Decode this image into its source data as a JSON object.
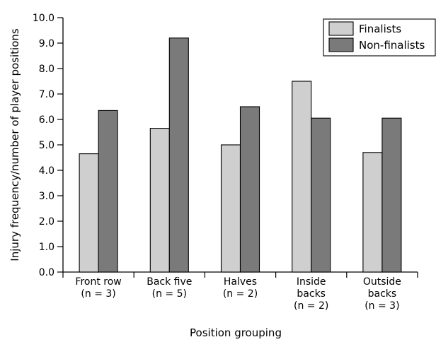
{
  "chart_data": {
    "type": "bar",
    "categories": [
      [
        "Front row",
        "(n = 3)"
      ],
      [
        "Back five",
        "(n = 5)"
      ],
      [
        "Halves",
        "(n = 2)"
      ],
      [
        "Inside",
        "backs",
        "(n = 2)"
      ],
      [
        "Outside",
        "backs",
        "(n = 3)"
      ]
    ],
    "series": [
      {
        "name": "Finalists",
        "color": "#cfcfcf",
        "values": [
          4.65,
          5.65,
          5.0,
          7.5,
          4.7
        ]
      },
      {
        "name": "Non-finalists",
        "color": "#7a7a7a",
        "values": [
          6.35,
          9.2,
          6.5,
          6.05,
          6.05
        ]
      }
    ],
    "ylabel": "Injury frequency/number of player positions",
    "xlabel": "Position grouping",
    "ylim": [
      0,
      10
    ],
    "yticks": [
      "0.0",
      "1.0",
      "2.0",
      "3.0",
      "4.0",
      "5.0",
      "6.0",
      "7.0",
      "8.0",
      "9.0",
      "10.0"
    ],
    "grid": false,
    "legend_position": "top-right"
  }
}
